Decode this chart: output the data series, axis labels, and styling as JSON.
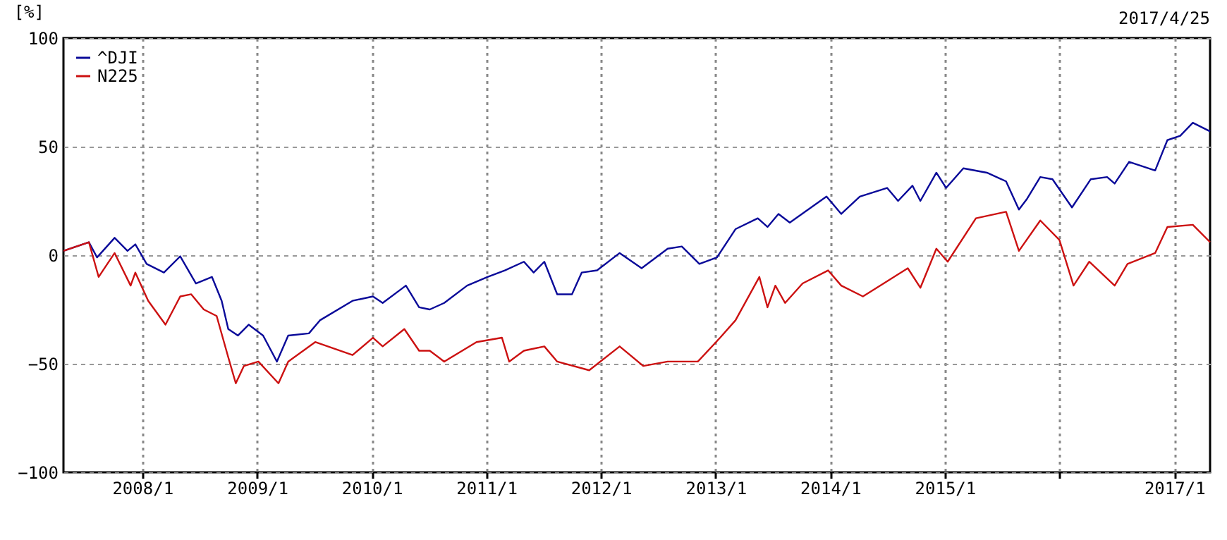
{
  "chart_data": {
    "type": "line",
    "ylabel": "[%]",
    "annotations": [
      "2017/4/25"
    ],
    "xlim": [
      "2007-04-25",
      "2017-04-25"
    ],
    "xticks": [
      {
        "value": "2008-01-01",
        "label": "2008/1"
      },
      {
        "value": "2009-01-01",
        "label": "2009/1"
      },
      {
        "value": "2010-01-01",
        "label": "2010/1"
      },
      {
        "value": "2011-01-01",
        "label": "2011/1"
      },
      {
        "value": "2012-01-01",
        "label": "2012/1"
      },
      {
        "value": "2013-01-01",
        "label": "2013/1"
      },
      {
        "value": "2014-01-01",
        "label": "2014/1"
      },
      {
        "value": "2015-01-01",
        "label": "2015/1"
      },
      {
        "value": "2016-01-01",
        "label": null
      },
      {
        "value": "2017-01-01",
        "label": "2017/1"
      }
    ],
    "ylim": [
      -100,
      100
    ],
    "yticks": [
      -100,
      -50,
      0,
      50,
      100
    ],
    "grid": true,
    "legend": "top left",
    "marker": "none",
    "line_style": "solid",
    "series": [
      {
        "name": "^DJI",
        "color": "#0a0a99",
        "x": [
          "2007-04-25",
          "2007-07-15",
          "2007-08-10",
          "2007-10-05",
          "2007-11-15",
          "2007-12-10",
          "2008-01-15",
          "2008-03-10",
          "2008-05-01",
          "2008-06-20",
          "2008-08-10",
          "2008-09-10",
          "2008-10-01",
          "2008-11-01",
          "2008-12-05",
          "2009-01-20",
          "2009-03-05",
          "2009-04-10",
          "2009-06-15",
          "2009-07-20",
          "2009-11-01",
          "2010-01-05",
          "2010-02-05",
          "2010-04-20",
          "2010-06-01",
          "2010-07-05",
          "2010-08-20",
          "2010-11-01",
          "2011-01-05",
          "2011-03-01",
          "2011-05-01",
          "2011-06-01",
          "2011-07-05",
          "2011-08-15",
          "2011-10-01",
          "2011-11-01",
          "2011-12-20",
          "2012-03-01",
          "2012-05-10",
          "2012-08-01",
          "2012-09-15",
          "2012-11-10",
          "2013-01-05",
          "2013-03-05",
          "2013-05-15",
          "2013-06-15",
          "2013-07-20",
          "2013-08-25",
          "2013-12-20",
          "2014-02-05",
          "2014-04-05",
          "2014-07-01",
          "2014-08-05",
          "2014-09-20",
          "2014-10-15",
          "2014-12-05",
          "2015-01-05",
          "2015-03-01",
          "2015-05-15",
          "2015-07-15",
          "2015-08-25",
          "2015-09-20",
          "2015-11-01",
          "2015-12-10",
          "2016-02-10",
          "2016-04-10",
          "2016-06-01",
          "2016-06-25",
          "2016-08-10",
          "2016-11-01",
          "2016-12-10",
          "2017-01-20",
          "2017-03-01",
          "2017-04-25"
        ],
        "values": [
          2,
          6,
          -1,
          8,
          2,
          5,
          -4,
          -8,
          -0.5,
          -13,
          -10,
          -21,
          -34,
          -37,
          -32,
          -37,
          -49,
          -37,
          -36,
          -30,
          -21,
          -19,
          -22,
          -14,
          -24,
          -25,
          -22,
          -14,
          -10,
          -7,
          -3,
          -8,
          -3,
          -18,
          -18,
          -8,
          -7,
          1,
          -6,
          3,
          4,
          -4,
          -1,
          12,
          17,
          13,
          19,
          15,
          27,
          19,
          27,
          31,
          25,
          32,
          25,
          38,
          31,
          40,
          38,
          34,
          21,
          26,
          36,
          35,
          22,
          35,
          36,
          33,
          43,
          39,
          53,
          55,
          61,
          57
        ]
      },
      {
        "name": "N225",
        "color": "#cc1111",
        "x": [
          "2007-04-25",
          "2007-07-15",
          "2007-08-15",
          "2007-10-05",
          "2007-11-25",
          "2007-12-10",
          "2008-01-20",
          "2008-03-15",
          "2008-05-01",
          "2008-06-05",
          "2008-07-15",
          "2008-08-25",
          "2008-10-01",
          "2008-10-25",
          "2008-11-20",
          "2009-01-05",
          "2009-03-10",
          "2009-04-10",
          "2009-07-05",
          "2009-11-01",
          "2010-01-05",
          "2010-02-05",
          "2010-04-15",
          "2010-06-01",
          "2010-07-05",
          "2010-08-20",
          "2010-12-01",
          "2011-02-20",
          "2011-03-15",
          "2011-05-01",
          "2011-07-05",
          "2011-08-15",
          "2011-11-25",
          "2012-03-01",
          "2012-05-15",
          "2012-08-01",
          "2012-11-05",
          "2013-01-15",
          "2013-03-05",
          "2013-05-20",
          "2013-06-15",
          "2013-07-10",
          "2013-08-10",
          "2013-10-05",
          "2013-12-25",
          "2014-02-05",
          "2014-04-15",
          "2014-07-01",
          "2014-09-05",
          "2014-10-15",
          "2014-12-05",
          "2015-01-10",
          "2015-04-10",
          "2015-07-15",
          "2015-08-25",
          "2015-11-01",
          "2016-01-01",
          "2016-02-15",
          "2016-04-05",
          "2016-06-25",
          "2016-08-05",
          "2016-11-01",
          "2016-12-10",
          "2017-03-01",
          "2017-04-25"
        ],
        "values": [
          2,
          6,
          -10,
          1,
          -14,
          -8,
          -21,
          -32,
          -19,
          -18,
          -25,
          -28,
          -47,
          -59,
          -51,
          -49,
          -59,
          -49,
          -40,
          -46,
          -38,
          -42,
          -34,
          -44,
          -44,
          -49,
          -40,
          -38,
          -49,
          -44,
          -42,
          -49,
          -53,
          -42,
          -51,
          -49,
          -49,
          -38,
          -30,
          -10,
          -24,
          -14,
          -22,
          -13,
          -7,
          -14,
          -19,
          -12,
          -6,
          -15,
          3,
          -3,
          17,
          20,
          2,
          16,
          7,
          -14,
          -3,
          -14,
          -4,
          1,
          13,
          14,
          6
        ]
      }
    ]
  }
}
